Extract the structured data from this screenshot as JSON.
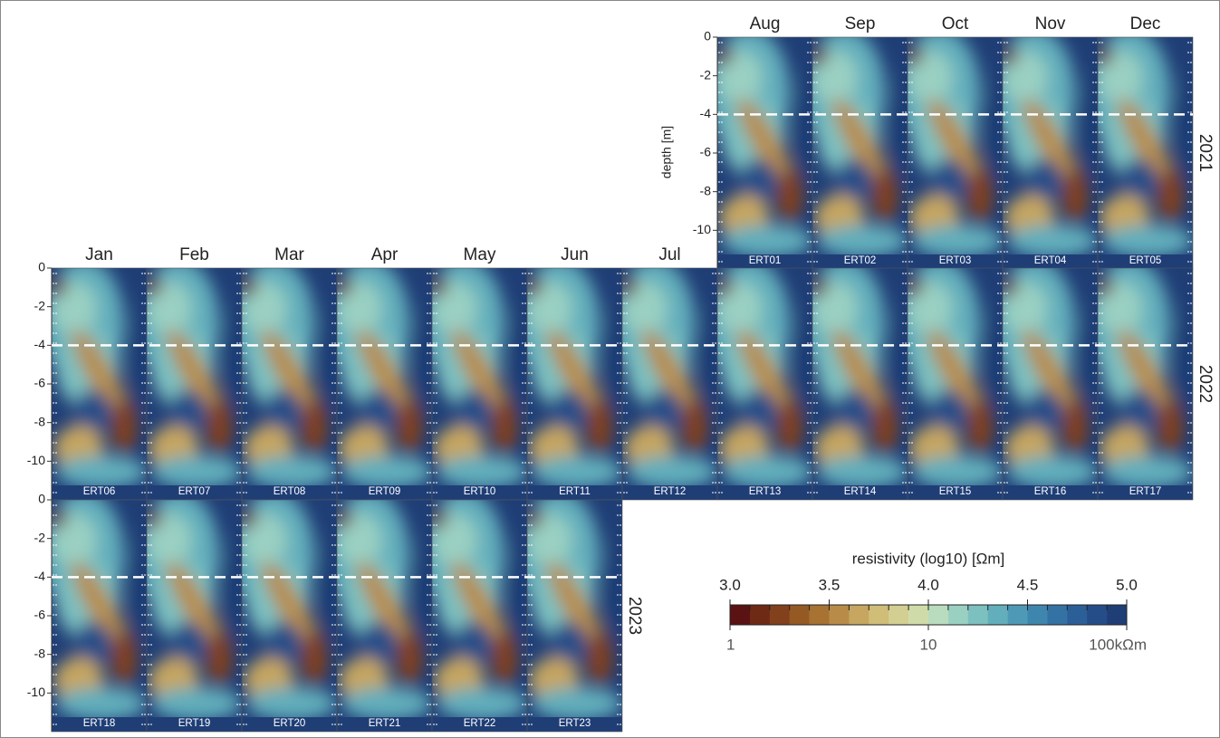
{
  "months": [
    "Jan",
    "Feb",
    "Mar",
    "Apr",
    "May",
    "Jun",
    "Jul",
    "Aug",
    "Sep",
    "Oct",
    "Nov",
    "Dec"
  ],
  "rows": [
    {
      "year": "2021",
      "panels": [
        "ERT01",
        "ERT02",
        "ERT03",
        "ERT04",
        "ERT05"
      ]
    },
    {
      "year": "2022",
      "panels": [
        "ERT06",
        "ERT07",
        "ERT08",
        "ERT09",
        "ERT10",
        "ERT11",
        "ERT12",
        "ERT13",
        "ERT14",
        "ERT15",
        "ERT16",
        "ERT17"
      ]
    },
    {
      "year": "2023",
      "panels": [
        "ERT18",
        "ERT19",
        "ERT20",
        "ERT21",
        "ERT22",
        "ERT23"
      ]
    }
  ],
  "y_axis": {
    "label": "depth [m]",
    "ylim": [
      0,
      -12
    ],
    "yticks": [
      0,
      -2,
      -4,
      -6,
      -8,
      -10
    ]
  },
  "reference_depth": -4,
  "colorbar": {
    "title": "resistivity (log10) [Ωm]",
    "lim": [
      3,
      5
    ],
    "top_ticks": [
      {
        "value": 3,
        "label": "3.0"
      },
      {
        "value": 3.5,
        "label": "3.5"
      },
      {
        "value": 4,
        "label": "4.0"
      },
      {
        "value": 4.5,
        "label": "4.5"
      },
      {
        "value": 5,
        "label": "5.0"
      }
    ],
    "bottom_ticks": [
      1,
      10,
      {
        "value": 100,
        "label": "100kΩm"
      }
    ],
    "colors": [
      "#5a1212",
      "#6e2a14",
      "#83401c",
      "#955a24",
      "#a77232",
      "#b88c48",
      "#c6a660",
      "#d0bd78",
      "#d3cf92",
      "#cfdcaa",
      "#b9dcbe",
      "#9ad0c2",
      "#7cc0c0",
      "#62aebc",
      "#4e9ab6",
      "#3f86ae",
      "#3572a4",
      "#2c5f98",
      "#254d88",
      "#1f3e76"
    ]
  }
}
